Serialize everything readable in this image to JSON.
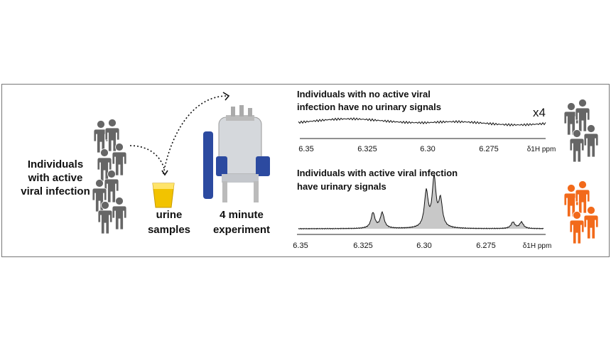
{
  "left_label": {
    "lines": [
      "Individuals",
      "with active",
      "viral infection"
    ]
  },
  "cup_label": {
    "lines": [
      "urine",
      "samples"
    ]
  },
  "instrument_label": {
    "lines": [
      "4 minute",
      "experiment"
    ]
  },
  "top_spectrum": {
    "title": [
      "Individuals with no active viral",
      "infection have no urinary signals"
    ],
    "scale": "x4",
    "ticks": [
      "6.35",
      "6.325",
      "6.30",
      "6.275"
    ],
    "axis_label": "δ1H ppm"
  },
  "bottom_spectrum": {
    "title": [
      "Individuals with active viral infection",
      "have urinary signals"
    ],
    "ticks": [
      "6.35",
      "6.325",
      "6.30",
      "6.275"
    ],
    "axis_label": "δ1H ppm"
  }
}
